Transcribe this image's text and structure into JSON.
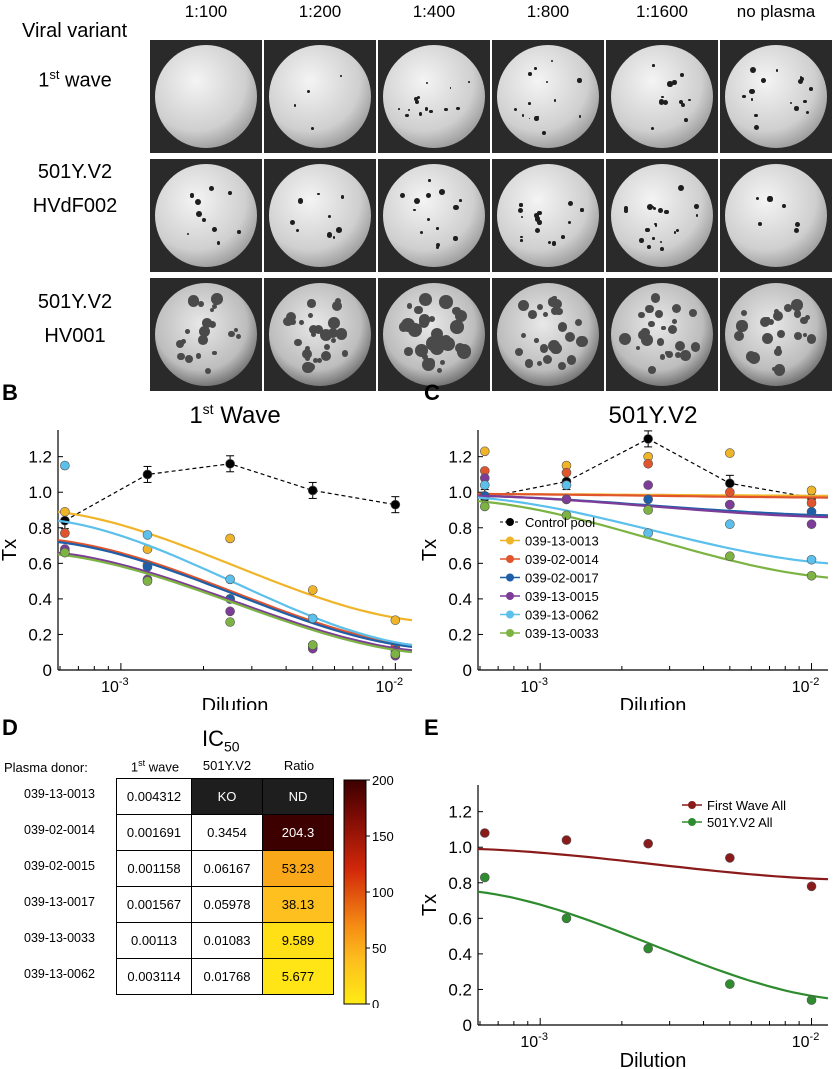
{
  "images_panel": {
    "dilutions": [
      "1:100",
      "1:200",
      "1:400",
      "1:800",
      "1:1600",
      "no plasma"
    ],
    "header_label": "Viral variant",
    "rows": [
      {
        "line1": "1",
        "sup": "st",
        "line1b": " wave",
        "line2": ""
      },
      {
        "line1": "501Y.V2",
        "sup": "",
        "line1b": "",
        "line2": "HVdF002"
      },
      {
        "line1": "501Y.V2",
        "sup": "",
        "line1b": "",
        "line2": "HV001"
      }
    ]
  },
  "panel_labels": {
    "b": "B",
    "c": "C",
    "d": "D",
    "e": "E"
  },
  "chart_data": [
    {
      "panel": "B",
      "type": "scatter",
      "title": "1st Wave",
      "xlabel": "Dilution",
      "ylabel": "Tx",
      "xscale": "log",
      "xlim": [
        0.00059,
        0.0115
      ],
      "ylim": [
        0,
        1.35
      ],
      "yticks": [
        "0",
        "0.2",
        "0.4",
        "0.6",
        "0.8",
        "1.0",
        "1.2"
      ],
      "x": [
        0.000625,
        0.00125,
        0.0025,
        0.005,
        0.01
      ],
      "series": [
        {
          "name": "Control pool",
          "color": "#000000",
          "values": [
            0.84,
            1.1,
            1.16,
            1.01,
            0.93
          ],
          "style": "dashed",
          "errors": true
        },
        {
          "name": "039-13-0013",
          "color": "#f0b429",
          "values": [
            0.89,
            0.68,
            0.74,
            0.45,
            0.28
          ],
          "curve": [
            0.89,
            0.28
          ]
        },
        {
          "name": "039-02-0014",
          "color": "#e1552d",
          "values": [
            0.77,
            0.59,
            0.4,
            0.13,
            0.13
          ],
          "curve": [
            0.73,
            0.14
          ]
        },
        {
          "name": "039-02-0017",
          "color": "#1f5fa8",
          "values": [
            0.67,
            0.58,
            0.4,
            0.14,
            0.11
          ],
          "curve": [
            0.72,
            0.13
          ]
        },
        {
          "name": "039-13-0015",
          "color": "#7d3c98",
          "values": [
            0.68,
            0.51,
            0.33,
            0.12,
            0.08
          ],
          "curve": [
            0.66,
            0.11
          ]
        },
        {
          "name": "039-13-0062",
          "color": "#5bc0eb",
          "values": [
            1.15,
            0.76,
            0.51,
            0.29,
            0.09
          ],
          "curve": [
            0.84,
            0.14
          ]
        },
        {
          "name": "039-13-0033",
          "color": "#7cb342",
          "values": [
            0.66,
            0.5,
            0.27,
            0.14,
            0.09
          ],
          "curve": [
            0.65,
            0.1
          ]
        }
      ]
    },
    {
      "panel": "C",
      "type": "scatter",
      "title": "501Y.V2",
      "xlabel": "Dilution",
      "ylabel": "Tx",
      "xscale": "log",
      "xlim": [
        0.00059,
        0.0115
      ],
      "ylim": [
        0,
        1.35
      ],
      "yticks": [
        "0",
        "0.2",
        "0.4",
        "0.6",
        "0.8",
        "1.0",
        "1.2"
      ],
      "legend_position": "bottom-left",
      "x": [
        0.000625,
        0.00125,
        0.0025,
        0.005,
        0.01
      ],
      "series": [
        {
          "name": "Control pool",
          "color": "#000000",
          "values": [
            0.97,
            1.06,
            1.3,
            1.05,
            0.97
          ],
          "style": "dashed",
          "errors": true
        },
        {
          "name": "039-13-0013",
          "color": "#f0b429",
          "values": [
            1.23,
            1.15,
            1.2,
            1.22,
            1.01
          ],
          "curve": [
            0.99,
            0.98
          ]
        },
        {
          "name": "039-02-0014",
          "color": "#e1552d",
          "values": [
            1.12,
            1.11,
            1.16,
            1.0,
            0.94
          ],
          "curve": [
            0.99,
            0.97
          ]
        },
        {
          "name": "039-02-0017",
          "color": "#1f5fa8",
          "values": [
            0.98,
            0.96,
            0.96,
            0.93,
            0.89
          ],
          "curve": [
            0.98,
            0.87
          ]
        },
        {
          "name": "039-13-0015",
          "color": "#7d3c98",
          "values": [
            1.08,
            0.96,
            1.04,
            0.93,
            0.82
          ],
          "curve": [
            0.98,
            0.86
          ]
        },
        {
          "name": "039-13-0062",
          "color": "#5bc0eb",
          "values": [
            1.04,
            1.04,
            0.77,
            0.82,
            0.62
          ],
          "curve": [
            0.97,
            0.6
          ]
        },
        {
          "name": "039-13-0033",
          "color": "#7cb342",
          "values": [
            0.92,
            0.87,
            0.9,
            0.64,
            0.53
          ],
          "curve": [
            0.95,
            0.52
          ]
        }
      ]
    },
    {
      "panel": "D",
      "type": "table",
      "title": "IC",
      "title_sub": "50",
      "row_header": "Plasma donor:",
      "columns": [
        {
          "main": "1",
          "sup": "st",
          "rest": " wave"
        },
        {
          "main": "501Y.V2",
          "sup": "",
          "rest": ""
        },
        {
          "main": "Ratio",
          "sup": "",
          "rest": ""
        }
      ],
      "rows": [
        {
          "donor": "039-13-0013",
          "first_wave": "0.004312",
          "v2": "KO",
          "ratio": "ND",
          "ratio_value": null
        },
        {
          "donor": "039-02-0014",
          "first_wave": "0.001691",
          "v2": "0.3454",
          "ratio": "204.3",
          "ratio_value": 204.3
        },
        {
          "donor": "039-02-0015",
          "first_wave": "0.001158",
          "v2": "0.06167",
          "ratio": "53.23",
          "ratio_value": 53.23
        },
        {
          "donor": "039-13-0017",
          "first_wave": "0.001567",
          "v2": "0.05978",
          "ratio": "38.13",
          "ratio_value": 38.13
        },
        {
          "donor": "039-13-0033",
          "first_wave": "0.00113",
          "v2": "0.01083",
          "ratio": "9.589",
          "ratio_value": 9.589
        },
        {
          "donor": "039-13-0062",
          "first_wave": "0.003114",
          "v2": "0.01768",
          "ratio": "5.677",
          "ratio_value": 5.677
        }
      ],
      "colorbar": {
        "min": 0,
        "max": 200,
        "ticks": [
          "200",
          "150",
          "100",
          "50",
          "0"
        ]
      }
    },
    {
      "panel": "E",
      "type": "scatter",
      "title": "",
      "xlabel": "Dilution",
      "ylabel": "Tx",
      "xscale": "log",
      "xlim": [
        0.00059,
        0.0115
      ],
      "ylim": [
        0,
        1.35
      ],
      "yticks": [
        "0",
        "0.2",
        "0.4",
        "0.6",
        "0.8",
        "1.0",
        "1.2"
      ],
      "legend_position": "top-right",
      "x": [
        0.000625,
        0.00125,
        0.0025,
        0.005,
        0.01
      ],
      "series": [
        {
          "name": "First Wave All",
          "color": "#8b1a1a",
          "values": [
            1.08,
            1.04,
            1.02,
            0.94,
            0.78
          ],
          "curve": [
            0.99,
            0.82
          ]
        },
        {
          "name": "501Y.V2 All",
          "color": "#2e8b2e",
          "values": [
            0.83,
            0.6,
            0.43,
            0.23,
            0.14
          ],
          "curve": [
            0.75,
            0.15
          ]
        }
      ]
    }
  ],
  "xtick_labels": {
    "left": "10",
    "left_exp": "-3",
    "right": "10",
    "right_exp": "-2"
  }
}
